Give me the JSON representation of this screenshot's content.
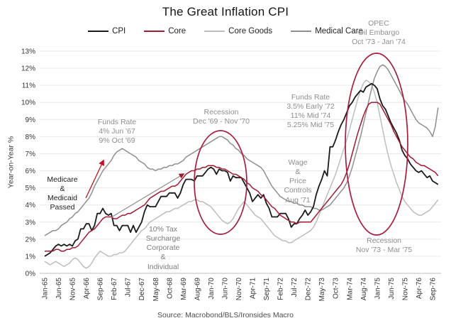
{
  "title": "The Great Inflation CPI",
  "source": "Source: Macrobond/BLS/Ironsides Macro",
  "chart_data": {
    "type": "line",
    "title": "The Great Inflation CPI",
    "ylabel": "Year-on-Year %",
    "ylim": [
      0,
      13
    ],
    "grid": true,
    "legend_position": "top",
    "x_start": "Jan-65",
    "x_end": "Nov-76",
    "x_frequency": "monthly",
    "x_ticks": [
      "Jan-65",
      "Jun-65",
      "Nov-65",
      "Apr-66",
      "Sep-66",
      "Feb-67",
      "Jul-67",
      "Dec-67",
      "May-68",
      "Oct-68",
      "Mar-69",
      "Aug-69",
      "Jan-70",
      "Jun-70",
      "Nov-70",
      "Apr-71",
      "Sep-71",
      "Feb-72",
      "Jul-72",
      "Dec-72",
      "May-73",
      "Oct-73",
      "Mar-74",
      "Aug-74",
      "Jan-75",
      "Jun-75",
      "Nov-75",
      "Apr-76",
      "Sep-76"
    ],
    "y_ticks": [
      "0%",
      "1%",
      "2%",
      "3%",
      "4%",
      "5%",
      "6%",
      "7%",
      "8%",
      "9%",
      "10%",
      "11%",
      "12%",
      "13%"
    ],
    "series": [
      {
        "name": "CPI",
        "color": "#1a1a1a",
        "values": [
          1.0,
          1.1,
          1.2,
          1.4,
          1.6,
          1.7,
          1.6,
          1.7,
          1.6,
          1.7,
          1.6,
          1.9,
          2.0,
          2.6,
          2.6,
          2.9,
          2.9,
          2.5,
          2.8,
          3.5,
          3.5,
          3.8,
          3.5,
          3.4,
          3.5,
          2.8,
          2.8,
          2.5,
          2.8,
          2.8,
          2.8,
          2.4,
          2.8,
          2.4,
          2.7,
          3.0,
          3.6,
          4.0,
          3.9,
          3.9,
          3.9,
          4.2,
          4.5,
          4.5,
          4.5,
          4.7,
          4.7,
          4.7,
          4.4,
          4.7,
          5.2,
          5.5,
          5.5,
          5.5,
          5.4,
          5.7,
          5.7,
          5.7,
          5.9,
          6.1,
          6.2,
          6.1,
          5.8,
          6.1,
          6.0,
          6.0,
          5.9,
          5.4,
          5.7,
          5.6,
          5.6,
          5.6,
          5.3,
          5.0,
          4.7,
          4.2,
          4.4,
          4.6,
          4.4,
          4.6,
          4.1,
          3.8,
          3.3,
          3.3,
          3.3,
          3.5,
          3.5,
          3.5,
          3.2,
          2.7,
          2.9,
          2.9,
          3.2,
          3.4,
          3.7,
          3.4,
          3.6,
          3.9,
          4.6,
          5.1,
          5.5,
          6.0,
          5.7,
          7.4,
          7.4,
          7.8,
          8.3,
          8.7,
          9.0,
          9.4,
          9.8,
          10.0,
          10.3,
          10.5,
          10.7,
          10.6,
          10.9,
          11.0,
          11.1,
          11.0,
          10.8,
          10.2,
          9.8,
          9.6,
          9.2,
          8.8,
          8.5,
          8.2,
          7.8,
          7.2,
          6.9,
          6.7,
          6.4,
          6.2,
          6.0,
          5.9,
          6.0,
          5.8,
          5.6,
          5.7,
          5.4,
          5.3,
          5.2
        ]
      },
      {
        "name": "Core",
        "color": "#a01b33",
        "values": [
          1.3,
          1.3,
          1.3,
          1.3,
          1.4,
          1.4,
          1.3,
          1.3,
          1.4,
          1.4,
          1.5,
          1.5,
          1.6,
          1.8,
          2.0,
          2.2,
          2.4,
          2.5,
          2.6,
          2.8,
          3.0,
          3.2,
          3.3,
          3.3,
          3.3,
          3.2,
          3.2,
          3.3,
          3.4,
          3.4,
          3.5,
          3.5,
          3.6,
          3.7,
          3.8,
          3.9,
          4.0,
          4.2,
          4.4,
          4.5,
          4.6,
          4.7,
          4.8,
          4.8,
          4.9,
          5.0,
          5.1,
          5.1,
          5.2,
          5.4,
          5.6,
          5.8,
          5.9,
          6.0,
          6.0,
          6.1,
          6.1,
          6.2,
          6.2,
          6.3,
          6.3,
          6.3,
          6.2,
          6.2,
          6.1,
          6.1,
          6.0,
          5.9,
          5.8,
          5.8,
          5.7,
          5.6,
          5.5,
          5.3,
          5.2,
          5.0,
          4.9,
          4.8,
          4.6,
          4.5,
          4.3,
          4.1,
          3.9,
          3.8,
          3.6,
          3.4,
          3.3,
          3.2,
          3.1,
          3.0,
          3.0,
          2.9,
          3.0,
          3.0,
          3.0,
          3.0,
          3.0,
          3.2,
          3.4,
          3.6,
          3.8,
          4.0,
          4.2,
          4.4,
          4.6,
          4.8,
          5.0,
          5.2,
          5.5,
          5.9,
          6.4,
          7.0,
          7.6,
          8.2,
          8.7,
          9.2,
          9.6,
          9.9,
          10.0,
          10.0,
          10.0,
          9.9,
          9.6,
          9.3,
          9.0,
          8.7,
          8.3,
          8.0,
          7.7,
          7.4,
          7.2,
          7.0,
          6.8,
          6.7,
          6.5,
          6.4,
          6.3,
          6.3,
          6.2,
          6.1,
          6.0,
          5.9,
          5.7
        ]
      },
      {
        "name": "Core Goods",
        "color": "#bdbdbd",
        "values": [
          0.7,
          0.6,
          0.5,
          0.6,
          0.7,
          0.6,
          0.5,
          0.4,
          0.5,
          0.6,
          0.8,
          0.9,
          0.8,
          0.6,
          0.4,
          0.3,
          0.4,
          0.6,
          0.9,
          1.1,
          1.3,
          1.2,
          1.1,
          1.0,
          1.0,
          1.1,
          1.1,
          1.2,
          1.2,
          1.3,
          1.5,
          1.7,
          1.9,
          2.1,
          2.3,
          2.5,
          2.6,
          2.8,
          3.0,
          3.1,
          3.2,
          3.3,
          3.4,
          3.5,
          3.6,
          3.6,
          3.7,
          3.8,
          3.8,
          3.9,
          4.0,
          4.1,
          4.2,
          4.2,
          4.3,
          4.3,
          4.2,
          4.2,
          4.1,
          4.0,
          3.9,
          3.7,
          3.5,
          3.3,
          3.1,
          3.0,
          2.9,
          3.0,
          3.2,
          3.5,
          3.8,
          4.0,
          4.2,
          4.0,
          3.8,
          3.6,
          3.4,
          3.3,
          3.2,
          3.0,
          2.8,
          2.6,
          2.4,
          2.2,
          2.1,
          2.0,
          1.9,
          1.9,
          1.8,
          1.8,
          1.9,
          2.0,
          2.1,
          2.2,
          2.3,
          2.4,
          2.5,
          2.7,
          3.0,
          3.4,
          3.8,
          4.2,
          4.6,
          5.0,
          5.4,
          5.8,
          6.3,
          6.8,
          7.3,
          7.8,
          8.4,
          9.0,
          9.6,
          10.2,
          10.7,
          11.1,
          11.3,
          11.2,
          11.0,
          10.6,
          10.0,
          9.2,
          8.4,
          7.6,
          6.9,
          6.3,
          5.8,
          5.3,
          4.9,
          4.5,
          4.2,
          4.0,
          3.8,
          3.6,
          3.5,
          3.4,
          3.4,
          3.5,
          3.6,
          3.7,
          3.9,
          4.1,
          4.3
        ]
      },
      {
        "name": "Medical Care",
        "color": "#8f8f8f",
        "values": [
          2.2,
          2.3,
          2.4,
          2.5,
          2.5,
          2.6,
          2.8,
          2.9,
          3.0,
          3.2,
          3.3,
          3.5,
          3.6,
          3.8,
          4.0,
          4.2,
          4.4,
          4.7,
          5.1,
          5.4,
          5.7,
          6.0,
          6.2,
          6.4,
          6.6,
          6.9,
          7.1,
          7.2,
          7.3,
          7.2,
          7.1,
          7.0,
          6.9,
          6.8,
          6.6,
          6.5,
          6.4,
          6.2,
          6.1,
          6.1,
          6.0,
          6.1,
          6.1,
          6.2,
          6.2,
          6.3,
          6.3,
          6.4,
          6.4,
          6.5,
          6.6,
          6.8,
          6.9,
          7.0,
          7.1,
          7.2,
          7.3,
          7.4,
          7.5,
          7.6,
          7.7,
          7.8,
          7.9,
          8.0,
          8.0,
          7.9,
          7.8,
          7.6,
          7.5,
          7.3,
          7.2,
          7.0,
          6.9,
          6.7,
          6.6,
          6.5,
          6.4,
          6.3,
          6.2,
          6.0,
          5.7,
          5.4,
          5.1,
          4.9,
          4.7,
          4.5,
          4.4,
          4.3,
          4.2,
          4.2,
          4.1,
          4.1,
          4.0,
          4.0,
          3.9,
          3.9,
          3.9,
          3.8,
          3.8,
          3.7,
          3.7,
          3.8,
          3.9,
          4.0,
          4.2,
          4.4,
          4.6,
          4.8,
          5.0,
          5.3,
          5.7,
          6.2,
          6.8,
          7.4,
          8.0,
          8.7,
          9.4,
          10.1,
          10.8,
          11.4,
          11.8,
          12.1,
          12.2,
          12.1,
          11.9,
          11.6,
          11.3,
          11.0,
          10.7,
          10.4,
          10.1,
          9.9,
          9.6,
          9.3,
          9.0,
          8.8,
          8.7,
          8.6,
          8.5,
          8.3,
          8.0,
          8.6,
          9.7
        ]
      }
    ],
    "annotations": {
      "funds_rate_67": {
        "text": "Funds Rate\n4% Jun '67\n9% Oct '69"
      },
      "medicare": {
        "text": "Medicare\n&\nMedicaid\nPassed"
      },
      "recession_70": {
        "text": "Recession\nDec '69 - Nov '70"
      },
      "tax_surcharge": {
        "text": "10% Tax\nSurcharge\nCorporate\n&\nIndividual"
      },
      "wage_price": {
        "text": "Wage\n&\nPrice\nControls\nAug '71"
      },
      "funds_rate_72": {
        "text": "Funds Rate\n3.5% Early '72\n11% Mid '74\n5.25% Mid '75"
      },
      "opec": {
        "text": "OPEC\nOil Embargo\nOct '73 - Jan '74"
      },
      "recession_75": {
        "text": "Recession\nNov '73 - Mar '75"
      }
    },
    "highlight_color": "#a61e3f"
  }
}
